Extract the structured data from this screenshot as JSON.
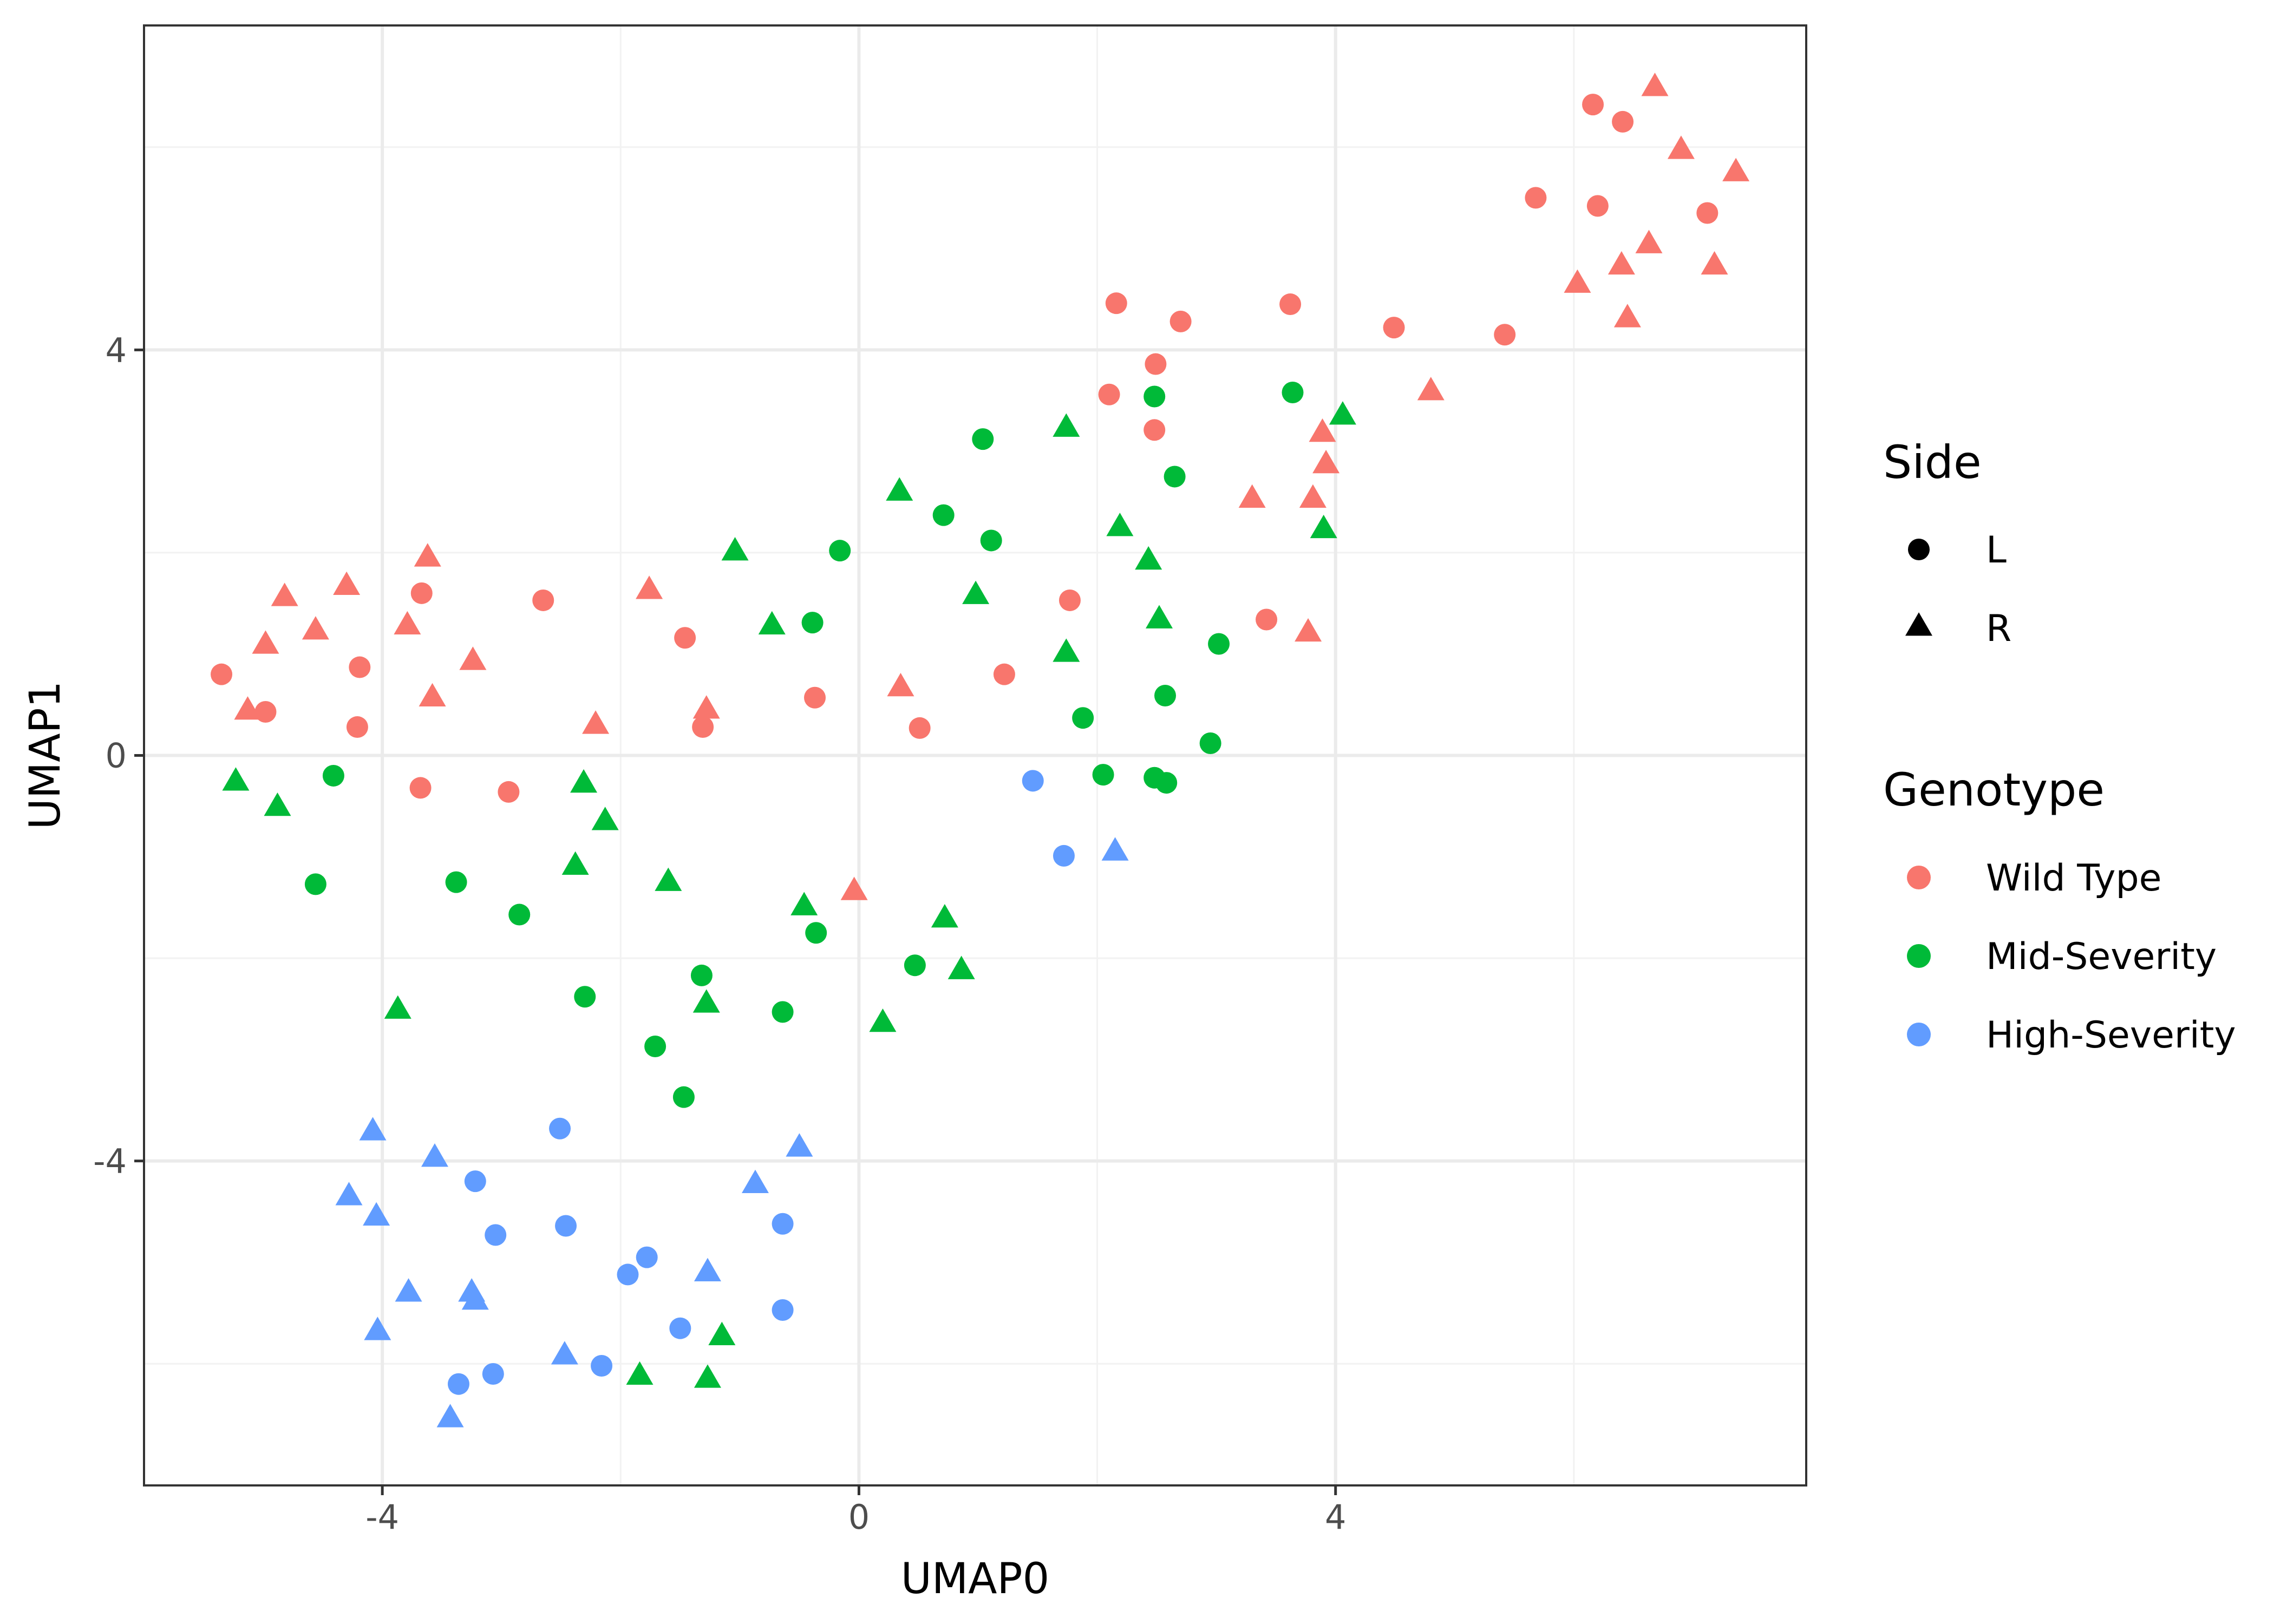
{
  "chart_data": {
    "type": "scatter",
    "xlabel": "UMAP0",
    "ylabel": "UMAP1",
    "xlim": [
      -6.0,
      7.95
    ],
    "ylim": [
      -7.2,
      7.2
    ],
    "x_ticks": [
      -4,
      0,
      4
    ],
    "y_ticks": [
      -4,
      0,
      4
    ],
    "x_minor": [
      -6,
      -2,
      2,
      6
    ],
    "y_minor": [
      -6,
      -2,
      2,
      6
    ],
    "grid": true,
    "legend_placement": "right",
    "shape_legend": {
      "title": "Side",
      "items": [
        {
          "label": "L",
          "shape": "circle"
        },
        {
          "label": "R",
          "shape": "triangle"
        }
      ]
    },
    "color_legend": {
      "title": "Genotype",
      "items": [
        {
          "label": "Wild Type",
          "color": "#F8766D"
        },
        {
          "label": "Mid-Severity",
          "color": "#00BA38"
        },
        {
          "label": "High-Severity",
          "color": "#619CFF"
        }
      ]
    },
    "series": [
      {
        "name": "Wild Type",
        "color": "#F8766D",
        "points": [
          {
            "x": -5.35,
            "y": 0.8,
            "side": "L"
          },
          {
            "x": -4.98,
            "y": 0.43,
            "side": "L"
          },
          {
            "x": -4.19,
            "y": 0.87,
            "side": "L"
          },
          {
            "x": -4.21,
            "y": 0.28,
            "side": "L"
          },
          {
            "x": -3.67,
            "y": 1.6,
            "side": "L"
          },
          {
            "x": -3.68,
            "y": -0.32,
            "side": "L"
          },
          {
            "x": -2.94,
            "y": -0.36,
            "side": "L"
          },
          {
            "x": -2.65,
            "y": 1.53,
            "side": "L"
          },
          {
            "x": -1.46,
            "y": 1.16,
            "side": "L"
          },
          {
            "x": -1.31,
            "y": 0.28,
            "side": "L"
          },
          {
            "x": -0.37,
            "y": 0.57,
            "side": "L"
          },
          {
            "x": 0.51,
            "y": 0.27,
            "side": "L"
          },
          {
            "x": 1.22,
            "y": 0.8,
            "side": "L"
          },
          {
            "x": 1.77,
            "y": 1.53,
            "side": "L"
          },
          {
            "x": 2.1,
            "y": 3.56,
            "side": "L"
          },
          {
            "x": 2.16,
            "y": 4.46,
            "side": "L"
          },
          {
            "x": 2.49,
            "y": 3.86,
            "side": "L"
          },
          {
            "x": 2.48,
            "y": 3.21,
            "side": "L"
          },
          {
            "x": 2.7,
            "y": 4.28,
            "side": "L"
          },
          {
            "x": 3.42,
            "y": 1.34,
            "side": "L"
          },
          {
            "x": 3.62,
            "y": 4.45,
            "side": "L"
          },
          {
            "x": 4.49,
            "y": 4.22,
            "side": "L"
          },
          {
            "x": 5.42,
            "y": 4.15,
            "side": "L"
          },
          {
            "x": 5.68,
            "y": 5.5,
            "side": "L"
          },
          {
            "x": 6.16,
            "y": 6.42,
            "side": "L"
          },
          {
            "x": 6.41,
            "y": 6.25,
            "side": "L"
          },
          {
            "x": 6.2,
            "y": 5.42,
            "side": "L"
          },
          {
            "x": 7.12,
            "y": 5.35,
            "side": "L"
          },
          {
            "x": -5.13,
            "y": 0.43,
            "side": "R"
          },
          {
            "x": -4.98,
            "y": 1.08,
            "side": "R"
          },
          {
            "x": -4.82,
            "y": 1.55,
            "side": "R"
          },
          {
            "x": -4.56,
            "y": 1.22,
            "side": "R"
          },
          {
            "x": -4.3,
            "y": 1.66,
            "side": "R"
          },
          {
            "x": -3.79,
            "y": 1.27,
            "side": "R"
          },
          {
            "x": -3.62,
            "y": 1.94,
            "side": "R"
          },
          {
            "x": -3.58,
            "y": 0.56,
            "side": "R"
          },
          {
            "x": -3.24,
            "y": 0.92,
            "side": "R"
          },
          {
            "x": -2.21,
            "y": 0.29,
            "side": "R"
          },
          {
            "x": -1.76,
            "y": 1.62,
            "side": "R"
          },
          {
            "x": -1.28,
            "y": 0.44,
            "side": "R"
          },
          {
            "x": -0.04,
            "y": -1.35,
            "side": "R"
          },
          {
            "x": 0.35,
            "y": 0.66,
            "side": "R"
          },
          {
            "x": 3.3,
            "y": 2.52,
            "side": "R"
          },
          {
            "x": 3.77,
            "y": 1.2,
            "side": "R"
          },
          {
            "x": 3.81,
            "y": 2.52,
            "side": "R"
          },
          {
            "x": 3.89,
            "y": 3.17,
            "side": "R"
          },
          {
            "x": 3.92,
            "y": 2.86,
            "side": "R"
          },
          {
            "x": 4.8,
            "y": 3.58,
            "side": "R"
          },
          {
            "x": 6.03,
            "y": 4.64,
            "side": "R"
          },
          {
            "x": 6.4,
            "y": 4.82,
            "side": "R"
          },
          {
            "x": 6.45,
            "y": 4.3,
            "side": "R"
          },
          {
            "x": 6.63,
            "y": 5.03,
            "side": "R"
          },
          {
            "x": 6.68,
            "y": 6.58,
            "side": "R"
          },
          {
            "x": 6.9,
            "y": 5.96,
            "side": "R"
          },
          {
            "x": 7.18,
            "y": 4.82,
            "side": "R"
          },
          {
            "x": 7.36,
            "y": 5.74,
            "side": "R"
          }
        ]
      },
      {
        "name": "Mid-Severity",
        "color": "#00BA38",
        "points": [
          {
            "x": -4.41,
            "y": -0.2,
            "side": "L"
          },
          {
            "x": -4.56,
            "y": -1.27,
            "side": "L"
          },
          {
            "x": -3.38,
            "y": -1.25,
            "side": "L"
          },
          {
            "x": -2.85,
            "y": -1.57,
            "side": "L"
          },
          {
            "x": -2.3,
            "y": -2.38,
            "side": "L"
          },
          {
            "x": -1.71,
            "y": -2.87,
            "side": "L"
          },
          {
            "x": -1.47,
            "y": -3.37,
            "side": "L"
          },
          {
            "x": -1.32,
            "y": -2.17,
            "side": "L"
          },
          {
            "x": -0.64,
            "y": -2.53,
            "side": "L"
          },
          {
            "x": -0.39,
            "y": 1.31,
            "side": "L"
          },
          {
            "x": -0.36,
            "y": -1.75,
            "side": "L"
          },
          {
            "x": -0.16,
            "y": 2.02,
            "side": "L"
          },
          {
            "x": 0.47,
            "y": -2.07,
            "side": "L"
          },
          {
            "x": 0.71,
            "y": 2.37,
            "side": "L"
          },
          {
            "x": 1.04,
            "y": 3.12,
            "side": "L"
          },
          {
            "x": 1.11,
            "y": 2.12,
            "side": "L"
          },
          {
            "x": 1.88,
            "y": 0.37,
            "side": "L"
          },
          {
            "x": 2.05,
            "y": -0.19,
            "side": "L"
          },
          {
            "x": 2.48,
            "y": -0.22,
            "side": "L"
          },
          {
            "x": 2.48,
            "y": 3.54,
            "side": "L"
          },
          {
            "x": 2.57,
            "y": 0.59,
            "side": "L"
          },
          {
            "x": 2.58,
            "y": -0.27,
            "side": "L"
          },
          {
            "x": 2.65,
            "y": 2.75,
            "side": "L"
          },
          {
            "x": 2.95,
            "y": 0.12,
            "side": "L"
          },
          {
            "x": 3.02,
            "y": 1.1,
            "side": "L"
          },
          {
            "x": 3.64,
            "y": 3.58,
            "side": "L"
          },
          {
            "x": -5.23,
            "y": -0.27,
            "side": "R"
          },
          {
            "x": -4.88,
            "y": -0.52,
            "side": "R"
          },
          {
            "x": -3.87,
            "y": -2.52,
            "side": "R"
          },
          {
            "x": -2.31,
            "y": -0.29,
            "side": "R"
          },
          {
            "x": -2.38,
            "y": -1.1,
            "side": "R"
          },
          {
            "x": -2.13,
            "y": -0.66,
            "side": "R"
          },
          {
            "x": -1.6,
            "y": -1.26,
            "side": "R"
          },
          {
            "x": -1.84,
            "y": -6.13,
            "side": "R"
          },
          {
            "x": -1.27,
            "y": -6.16,
            "side": "R"
          },
          {
            "x": -1.28,
            "y": -2.46,
            "side": "R"
          },
          {
            "x": -1.15,
            "y": -5.74,
            "side": "R"
          },
          {
            "x": -1.04,
            "y": 2.0,
            "side": "R"
          },
          {
            "x": -0.73,
            "y": 1.27,
            "side": "R"
          },
          {
            "x": -0.46,
            "y": -1.5,
            "side": "R"
          },
          {
            "x": 0.2,
            "y": -2.65,
            "side": "R"
          },
          {
            "x": 0.34,
            "y": 2.59,
            "side": "R"
          },
          {
            "x": 0.72,
            "y": -1.62,
            "side": "R"
          },
          {
            "x": 0.86,
            "y": -2.13,
            "side": "R"
          },
          {
            "x": 0.98,
            "y": 1.57,
            "side": "R"
          },
          {
            "x": 1.74,
            "y": 1.0,
            "side": "R"
          },
          {
            "x": 1.74,
            "y": 3.22,
            "side": "R"
          },
          {
            "x": 2.19,
            "y": 2.24,
            "side": "R"
          },
          {
            "x": 2.43,
            "y": 1.91,
            "side": "R"
          },
          {
            "x": 2.52,
            "y": 1.33,
            "side": "R"
          },
          {
            "x": 3.9,
            "y": 2.22,
            "side": "R"
          },
          {
            "x": 4.06,
            "y": 3.34,
            "side": "R"
          }
        ]
      },
      {
        "name": "High-Severity",
        "color": "#619CFF",
        "points": [
          {
            "x": -3.36,
            "y": -6.2,
            "side": "L"
          },
          {
            "x": -3.07,
            "y": -6.1,
            "side": "L"
          },
          {
            "x": -3.22,
            "y": -4.2,
            "side": "L"
          },
          {
            "x": -3.05,
            "y": -4.73,
            "side": "L"
          },
          {
            "x": -2.51,
            "y": -3.68,
            "side": "L"
          },
          {
            "x": -2.46,
            "y": -4.64,
            "side": "L"
          },
          {
            "x": -2.16,
            "y": -6.02,
            "side": "L"
          },
          {
            "x": -1.94,
            "y": -5.12,
            "side": "L"
          },
          {
            "x": -1.78,
            "y": -4.95,
            "side": "L"
          },
          {
            "x": -1.5,
            "y": -5.65,
            "side": "L"
          },
          {
            "x": -0.64,
            "y": -4.62,
            "side": "L"
          },
          {
            "x": -0.64,
            "y": -5.47,
            "side": "L"
          },
          {
            "x": 1.46,
            "y": -0.25,
            "side": "L"
          },
          {
            "x": 1.72,
            "y": -0.99,
            "side": "L"
          },
          {
            "x": -4.08,
            "y": -3.72,
            "side": "R"
          },
          {
            "x": -4.28,
            "y": -4.36,
            "side": "R"
          },
          {
            "x": -4.05,
            "y": -4.56,
            "side": "R"
          },
          {
            "x": -4.04,
            "y": -5.69,
            "side": "R"
          },
          {
            "x": -3.78,
            "y": -5.31,
            "side": "R"
          },
          {
            "x": -3.56,
            "y": -3.98,
            "side": "R"
          },
          {
            "x": -3.43,
            "y": -6.55,
            "side": "R"
          },
          {
            "x": -3.25,
            "y": -5.31,
            "side": "R"
          },
          {
            "x": -3.22,
            "y": -5.39,
            "side": "R"
          },
          {
            "x": -2.47,
            "y": -5.93,
            "side": "R"
          },
          {
            "x": -1.27,
            "y": -5.11,
            "side": "R"
          },
          {
            "x": -0.87,
            "y": -4.24,
            "side": "R"
          },
          {
            "x": -0.5,
            "y": -3.88,
            "side": "R"
          },
          {
            "x": 2.15,
            "y": -0.96,
            "side": "R"
          }
        ]
      }
    ]
  }
}
